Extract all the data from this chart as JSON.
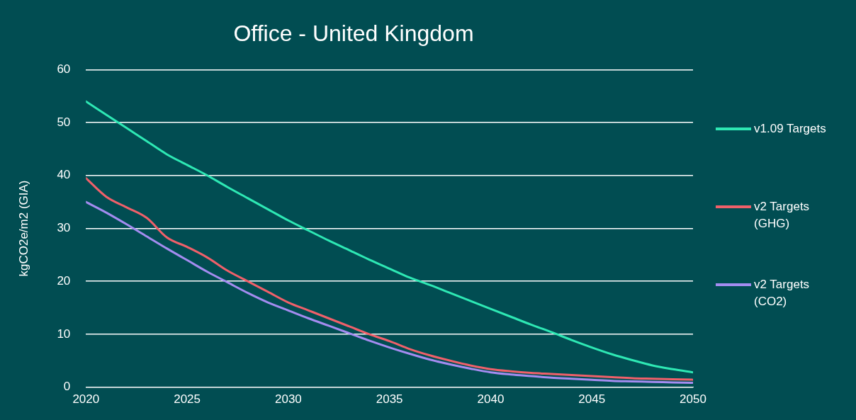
{
  "chart_data": {
    "type": "line",
    "title": "Office - United Kingdom",
    "ylabel": "kgCO2e/m2 (GIA)",
    "x": [
      2020,
      2021,
      2022,
      2023,
      2024,
      2025,
      2026,
      2027,
      2028,
      2029,
      2030,
      2031,
      2032,
      2033,
      2034,
      2035,
      2036,
      2037,
      2038,
      2039,
      2040,
      2041,
      2042,
      2043,
      2044,
      2045,
      2046,
      2047,
      2048,
      2049,
      2050
    ],
    "series": [
      {
        "name": "v1.09 Targets",
        "color": "#2ee8b4",
        "values": [
          54,
          51.5,
          49,
          46.5,
          44,
          42,
          40,
          37.8,
          35.7,
          33.6,
          31.5,
          29.6,
          27.7,
          25.9,
          24.1,
          22.4,
          20.7,
          19.3,
          17.8,
          16.3,
          14.8,
          13.3,
          11.8,
          10.4,
          8.9,
          7.5,
          6.2,
          5.1,
          4.1,
          3.4,
          2.8
        ]
      },
      {
        "name": "v2 Targets (GHG)",
        "color": "#f0606a",
        "values": [
          39.5,
          36,
          34,
          32,
          28.3,
          26.5,
          24.5,
          22,
          20,
          18,
          16,
          14.5,
          13,
          11.5,
          10,
          8.7,
          7.2,
          6,
          5,
          4.1,
          3.4,
          3,
          2.7,
          2.5,
          2.3,
          2.1,
          1.9,
          1.7,
          1.6,
          1.5,
          1.4
        ]
      },
      {
        "name": "v2 Targets (CO2)",
        "color": "#a48cf0",
        "values": [
          35,
          33,
          30.8,
          28.5,
          26.2,
          24,
          21.8,
          19.8,
          17.8,
          16,
          14.5,
          13,
          11.6,
          10.2,
          8.8,
          7.5,
          6.3,
          5.2,
          4.3,
          3.5,
          2.8,
          2.4,
          2.1,
          1.8,
          1.6,
          1.4,
          1.2,
          1.1,
          1,
          0.9,
          0.8
        ]
      }
    ],
    "xlim": [
      2020,
      2050
    ],
    "xticks": [
      2020,
      2025,
      2030,
      2035,
      2040,
      2045,
      2050
    ],
    "ylim": [
      0,
      60
    ],
    "yticks": [
      0,
      10,
      20,
      30,
      40,
      50,
      60
    ],
    "grid": "y",
    "legend": "right",
    "marker": "none",
    "line_style": "solid"
  }
}
